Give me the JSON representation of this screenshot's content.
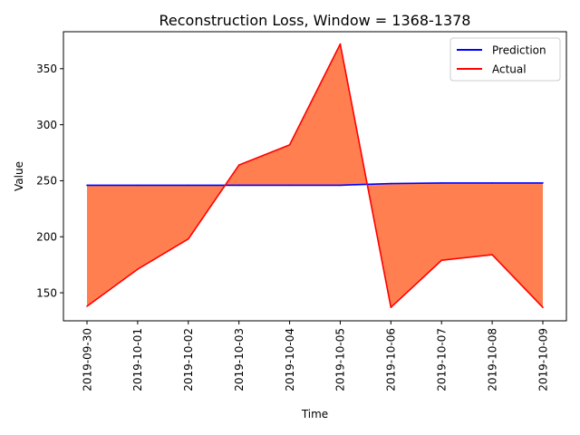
{
  "chart_data": {
    "type": "line",
    "title": "Reconstruction Loss, Window = 1368-1378",
    "xlabel": "Time",
    "ylabel": "Value",
    "x": [
      "2019-09-30",
      "2019-10-01",
      "2019-10-02",
      "2019-10-03",
      "2019-10-04",
      "2019-10-05",
      "2019-10-06",
      "2019-10-07",
      "2019-10-08",
      "2019-10-09"
    ],
    "ylim": [
      125,
      383
    ],
    "yticks": [
      150,
      200,
      250,
      300,
      350
    ],
    "grid": false,
    "legend_position": "upper right",
    "series": [
      {
        "name": "Prediction",
        "color": "#0000ff",
        "values": [
          246,
          246,
          246,
          246,
          246,
          246,
          247.5,
          248,
          248,
          248
        ]
      },
      {
        "name": "Actual",
        "color": "#ff0000",
        "values": [
          138,
          171,
          198,
          264,
          282,
          372,
          137,
          179,
          184,
          137
        ]
      }
    ],
    "fill_between": {
      "color": "#ff7f50",
      "between": [
        "Prediction",
        "Actual"
      ]
    }
  }
}
